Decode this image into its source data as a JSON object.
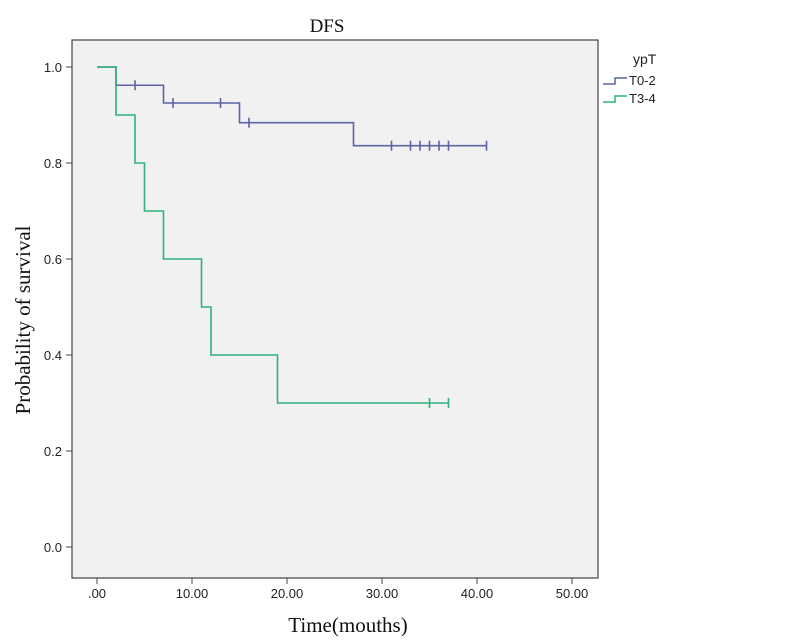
{
  "chart_data": {
    "type": "line",
    "subtype": "kaplan-meier step",
    "title": "DFS",
    "xlabel": "Time(mouths)",
    "ylabel": "Probability of survival",
    "xlim": [
      -5,
      55
    ],
    "ylim": [
      -0.07,
      1.05
    ],
    "xticks": [
      0,
      10,
      20,
      30,
      40,
      50
    ],
    "xtick_labels": [
      ".00",
      "10.00",
      "20.00",
      "30.00",
      "40.00",
      "50.00"
    ],
    "yticks": [
      0,
      0.2,
      0.4,
      0.6,
      0.8,
      1.0
    ],
    "ytick_labels": [
      "0.0",
      "0.2",
      "0.4",
      "0.6",
      "0.8",
      "1.0"
    ],
    "grid": false,
    "legend": {
      "title": "ypT",
      "placement": "top-right, outside plot"
    },
    "series": [
      {
        "name": "T0-2",
        "color": "#5b64a6",
        "steps": [
          [
            0,
            1.0
          ],
          [
            2,
            0.962
          ],
          [
            7,
            0.925
          ],
          [
            15,
            0.884
          ],
          [
            27,
            0.836
          ]
        ],
        "end": 41,
        "censored": [
          4,
          8,
          13,
          16,
          31,
          33,
          34,
          35,
          36,
          37,
          41
        ]
      },
      {
        "name": "T3-4",
        "color": "#2fb37a",
        "steps": [
          [
            0,
            1.0
          ],
          [
            2,
            0.9
          ],
          [
            4,
            0.8
          ],
          [
            5,
            0.7
          ],
          [
            7,
            0.6
          ],
          [
            11,
            0.5
          ],
          [
            12,
            0.4
          ],
          [
            19,
            0.3
          ]
        ],
        "end": 37,
        "censored": [
          35,
          37
        ]
      }
    ]
  }
}
